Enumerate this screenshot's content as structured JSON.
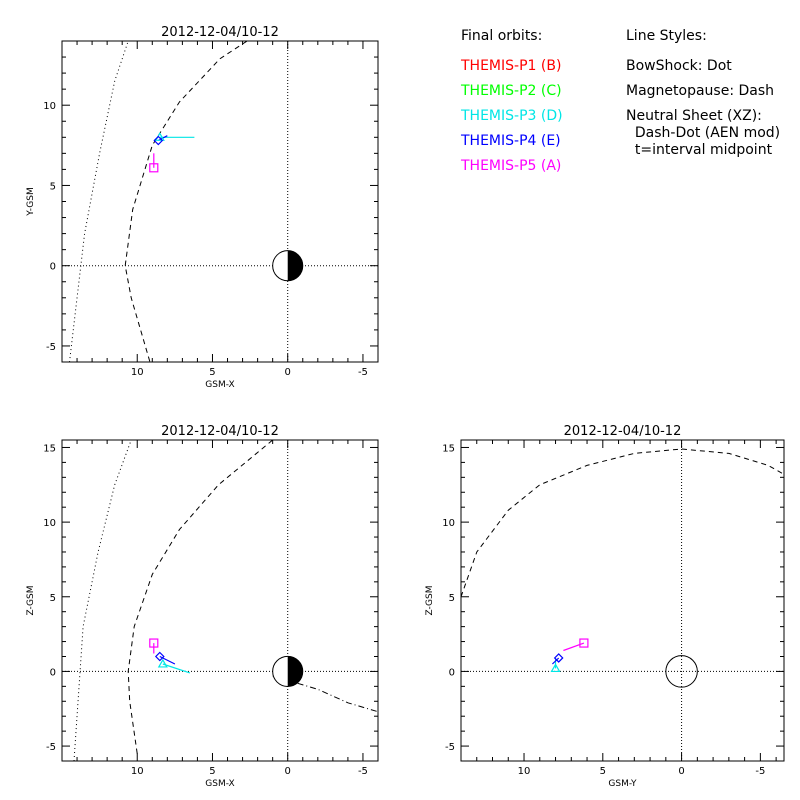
{
  "colors": {
    "p1": "#ff0000",
    "p2": "#00ff00",
    "p3": "#00e6e6",
    "p4": "#0000ff",
    "p5": "#ff00ff",
    "axis": "#000000"
  },
  "legend": {
    "orbits_title": "Final orbits:",
    "probes": [
      {
        "label": "THEMIS-P1 (B)",
        "color_key": "p1"
      },
      {
        "label": "THEMIS-P2 (C)",
        "color_key": "p2"
      },
      {
        "label": "THEMIS-P3 (D)",
        "color_key": "p3"
      },
      {
        "label": "THEMIS-P4 (E)",
        "color_key": "p4"
      },
      {
        "label": "THEMIS-P5 (A)",
        "color_key": "p5"
      }
    ],
    "styles_title": "Line Styles:",
    "style_lines": [
      "BowShock: Dot",
      "Magnetopause: Dash",
      "Neutral Sheet (XZ):",
      "  Dash-Dot (AEN mod)",
      "  t=interval midpoint"
    ]
  },
  "chart_data": [
    {
      "id": "xy",
      "type": "line",
      "title": "2012-12-04/10-12",
      "xlabel": "GSM-X",
      "ylabel": "Y-GSM",
      "xlim": [
        15,
        -6
      ],
      "ylim": [
        -6,
        14
      ],
      "xticks": [
        10,
        5,
        0,
        -5
      ],
      "yticks": [
        -5,
        0,
        5,
        10
      ],
      "earth": {
        "type": "half-dark-sunward-light"
      },
      "bowshock": {
        "style": "dot",
        "x": [
          14.5,
          13.5,
          12.5,
          11.5,
          10.6
        ],
        "y": [
          -6,
          2,
          7,
          11.5,
          14
        ]
      },
      "magnetopause": {
        "style": "dash",
        "x": [
          9.0,
          10.4,
          10.8,
          10.3,
          9.0,
          7.2,
          4.5,
          2.7
        ],
        "y": [
          -6.5,
          -2,
          0,
          3.5,
          7.5,
          10.2,
          12.9,
          14
        ]
      },
      "series": [
        {
          "name": "THEMIS-P3 (D)",
          "color_key": "p3",
          "x": [
            8.5,
            6.2
          ],
          "y": [
            8.0,
            8.0
          ],
          "marker": "triangle"
        },
        {
          "name": "THEMIS-P4 (E)",
          "color_key": "p4",
          "x": [
            8.6,
            8.0
          ],
          "y": [
            7.8,
            8.1
          ],
          "marker": "diamond"
        },
        {
          "name": "THEMIS-P5 (A)",
          "color_key": "p5",
          "x": [
            8.9,
            8.9
          ],
          "y": [
            6.1,
            7.0
          ],
          "marker": "square"
        }
      ]
    },
    {
      "id": "xz",
      "type": "line",
      "title": "2012-12-04/10-12",
      "xlabel": "GSM-X",
      "ylabel": "Z-GSM",
      "xlim": [
        15,
        -6
      ],
      "ylim": [
        -6,
        15.5
      ],
      "xticks": [
        10,
        5,
        0,
        -5
      ],
      "yticks": [
        -5,
        0,
        5,
        10,
        15
      ],
      "earth": {
        "type": "half-dark-sunward-light"
      },
      "bowshock": {
        "style": "dot",
        "x": [
          14.2,
          13.6,
          12.6,
          11.5,
          10.4
        ],
        "y": [
          -6,
          3,
          8,
          12.5,
          15.5
        ]
      },
      "magnetopause": {
        "style": "dash",
        "x": [
          10.0,
          10.5,
          10.6,
          10.2,
          9.0,
          7.2,
          4.6,
          1.0
        ],
        "y": [
          -5.5,
          -2,
          0,
          3,
          6.5,
          9.5,
          12.5,
          15.5
        ]
      },
      "neutral_sheet": {
        "style": "dash-dot",
        "x": [
          1.0,
          -2,
          -4,
          -6
        ],
        "y": [
          -0.3,
          -1.2,
          -2.1,
          -2.7
        ]
      },
      "series": [
        {
          "name": "THEMIS-P3 (D)",
          "color_key": "p3",
          "x": [
            8.3,
            6.5
          ],
          "y": [
            0.5,
            -0.1
          ],
          "marker": "triangle"
        },
        {
          "name": "THEMIS-P4 (E)",
          "color_key": "p4",
          "x": [
            8.5,
            7.5
          ],
          "y": [
            1.0,
            0.5
          ],
          "marker": "diamond"
        },
        {
          "name": "THEMIS-P5 (A)",
          "color_key": "p5",
          "x": [
            8.9,
            8.9
          ],
          "y": [
            1.9,
            1.2
          ],
          "marker": "square"
        }
      ]
    },
    {
      "id": "yz",
      "type": "line",
      "title": "2012-12-04/10-12",
      "xlabel": "GSM-Y",
      "ylabel": "Z-GSM",
      "xlim": [
        14,
        -6.5
      ],
      "ylim": [
        -6,
        15.5
      ],
      "xticks": [
        10,
        5,
        0,
        -5
      ],
      "yticks": [
        -5,
        0,
        5,
        10,
        15
      ],
      "earth": {
        "type": "open-circle"
      },
      "magnetopause": {
        "style": "dash",
        "x": [
          14,
          13,
          11,
          9,
          6,
          3,
          0,
          -3,
          -5.5,
          -6.5
        ],
        "y": [
          5,
          8,
          10.8,
          12.5,
          13.8,
          14.6,
          14.9,
          14.6,
          13.8,
          13.2
        ]
      },
      "series": [
        {
          "name": "THEMIS-P3 (D)",
          "color_key": "p3",
          "x": [
            8.0,
            8.0
          ],
          "y": [
            0.2,
            0.8
          ],
          "marker": "triangle"
        },
        {
          "name": "THEMIS-P4 (E)",
          "color_key": "p4",
          "x": [
            7.8,
            8.2
          ],
          "y": [
            0.9,
            0.5
          ],
          "marker": "diamond"
        },
        {
          "name": "THEMIS-P5 (A)",
          "color_key": "p5",
          "x": [
            6.2,
            7.5
          ],
          "y": [
            1.9,
            1.4
          ],
          "marker": "square"
        }
      ]
    }
  ]
}
